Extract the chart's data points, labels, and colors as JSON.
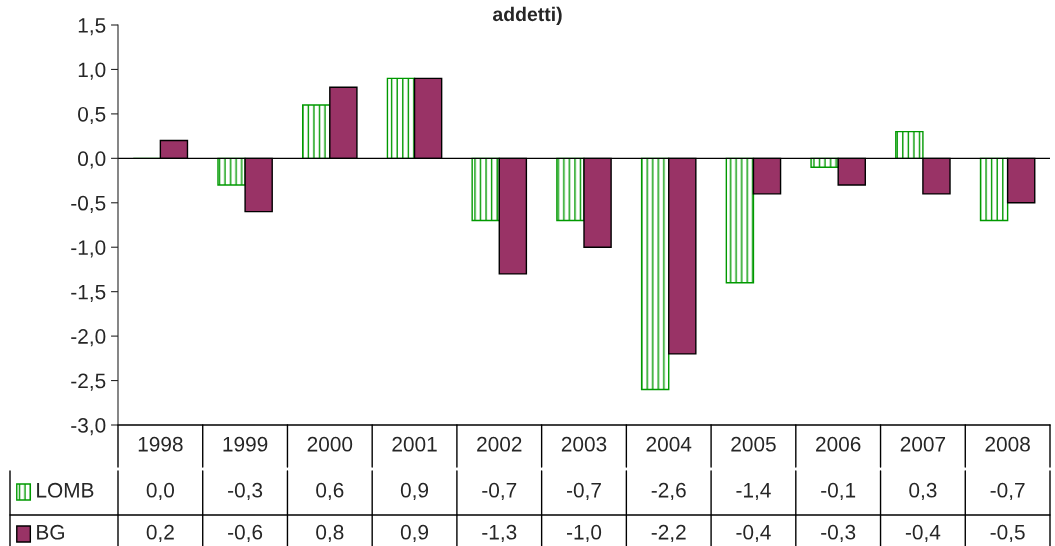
{
  "chart_data": {
    "type": "bar",
    "title": "addetti)",
    "categories": [
      "1998",
      "1999",
      "2000",
      "2001",
      "2002",
      "2003",
      "2004",
      "2005",
      "2006",
      "2007",
      "2008"
    ],
    "series": [
      {
        "name": "LOMB",
        "color": "#009900",
        "values": [
          0.0,
          -0.3,
          0.6,
          0.9,
          -0.7,
          -0.7,
          -2.6,
          -1.4,
          -0.1,
          0.3,
          -0.7
        ],
        "value_labels": [
          "0,0",
          "-0,3",
          "0,6",
          "0,9",
          "-0,7",
          "-0,7",
          "-2,6",
          "-1,4",
          "-0,1",
          "0,3",
          "-0,7"
        ]
      },
      {
        "name": "BG",
        "color": "#993366",
        "values": [
          0.2,
          -0.6,
          0.8,
          0.9,
          -1.3,
          -1.0,
          -2.2,
          -0.4,
          -0.3,
          -0.4,
          -0.5
        ],
        "value_labels": [
          "0,2",
          "-0,6",
          "0,8",
          "0,9",
          "-1,3",
          "-1,0",
          "-2,2",
          "-0,4",
          "-0,3",
          "-0,4",
          "-0,5"
        ]
      }
    ],
    "ylim": [
      -3.0,
      1.5
    ],
    "yticks": [
      {
        "value": -3.0,
        "label": "-3,0"
      },
      {
        "value": -2.5,
        "label": "-2,5"
      },
      {
        "value": -2.0,
        "label": "-2,0"
      },
      {
        "value": -1.5,
        "label": "-1,5"
      },
      {
        "value": -1.0,
        "label": "-1,0"
      },
      {
        "value": -0.5,
        "label": "-0,5"
      },
      {
        "value": 0.0,
        "label": "0,0"
      },
      {
        "value": 0.5,
        "label": "0,5"
      },
      {
        "value": 1.0,
        "label": "1,0"
      },
      {
        "value": 1.5,
        "label": "1,5"
      }
    ],
    "legend": "bottom left"
  }
}
